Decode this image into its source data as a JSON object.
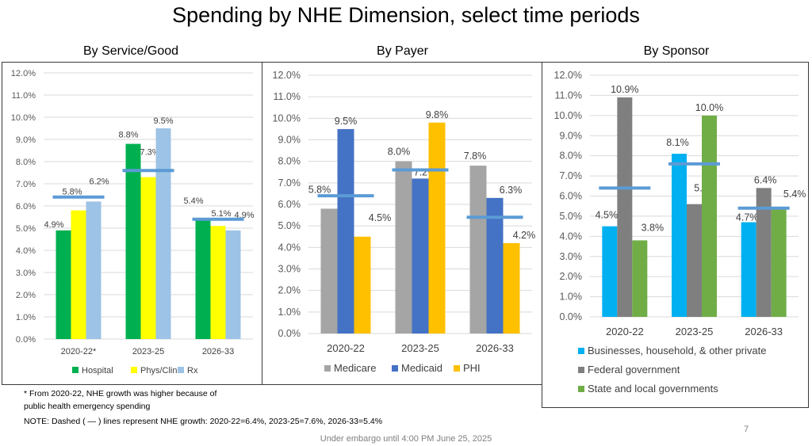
{
  "slide": {
    "title": "Spending by NHE Dimension, select time periods",
    "footnote_1": "* From 2020-22, NHE growth was higher because of",
    "footnote_2": "public health emergency spending",
    "note": "NOTE: Dashed ( — ) lines represent NHE growth: 2020-22=6.4%, 2023-25=7.6%, 2026-33=5.4%",
    "embargo": "Under embargo until 4:00 PM June 25, 2025",
    "page_number": "7"
  },
  "chart_data": [
    {
      "type": "bar",
      "title": "By Service/Good",
      "categories": [
        "2020-22*",
        "2023-25",
        "2026-33"
      ],
      "series": [
        {
          "name": "Hospital",
          "color": "#00B050",
          "values": [
            4.9,
            8.8,
            5.4
          ],
          "labels": [
            "4.9%",
            "8.8%",
            "5.4%"
          ]
        },
        {
          "name": "Phys/Clin",
          "color": "#FFFF00",
          "values": [
            5.8,
            7.3,
            5.1
          ],
          "labels": [
            "5.8%",
            "7.3%",
            "5.1%"
          ]
        },
        {
          "name": "Rx",
          "color": "#9DC3E6",
          "values": [
            6.2,
            9.5,
            4.9
          ],
          "labels": [
            "6.2%",
            "9.5%",
            "4.9%"
          ]
        }
      ],
      "nhe_growth": [
        6.4,
        7.6,
        5.4
      ],
      "nhe_line_color": "#5B9BD5",
      "ylim": [
        0,
        12
      ],
      "yticks": [
        "0.0%",
        "1.0%",
        "2.0%",
        "3.0%",
        "4.0%",
        "5.0%",
        "6.0%",
        "7.0%",
        "8.0%",
        "9.0%",
        "10.0%",
        "11.0%",
        "12.0%"
      ],
      "grid": true,
      "legend": "bottom",
      "xlabel": "",
      "ylabel": ""
    },
    {
      "type": "bar",
      "title": "By Payer",
      "categories": [
        "2020-22",
        "2023-25",
        "2026-33"
      ],
      "series": [
        {
          "name": "Medicare",
          "color": "#A5A5A5",
          "values": [
            5.8,
            8.0,
            7.8
          ],
          "labels": [
            "5.8%",
            "8.0%",
            "7.8%"
          ]
        },
        {
          "name": "Medicaid",
          "color": "#4472C4",
          "values": [
            9.5,
            7.2,
            6.3
          ],
          "labels": [
            "9.5%",
            "7.2%",
            "6.3%"
          ]
        },
        {
          "name": "PHI",
          "color": "#FFC000",
          "values": [
            4.5,
            9.8,
            4.2
          ],
          "labels": [
            "4.5%",
            "9.8%",
            "4.2%"
          ]
        }
      ],
      "nhe_growth": [
        6.4,
        7.6,
        5.4
      ],
      "nhe_line_color": "#5B9BD5",
      "ylim": [
        0,
        12
      ],
      "yticks": [
        "0.0%",
        "1.0%",
        "2.0%",
        "3.0%",
        "4.0%",
        "5.0%",
        "6.0%",
        "7.0%",
        "8.0%",
        "9.0%",
        "10.0%",
        "11.0%",
        "12.0%"
      ],
      "grid": true,
      "legend": "bottom",
      "xlabel": "",
      "ylabel": ""
    },
    {
      "type": "bar",
      "title": "By Sponsor",
      "categories": [
        "2020-22",
        "2023-25",
        "2026-33"
      ],
      "series": [
        {
          "name": "Businesses, household, & other private",
          "color": "#00B0F0",
          "values": [
            4.5,
            8.1,
            4.7
          ],
          "labels": [
            "4.5%",
            "8.1%",
            "4.7%"
          ]
        },
        {
          "name": "Federal government",
          "color": "#7F7F7F",
          "values": [
            10.9,
            5.6,
            6.4
          ],
          "labels": [
            "10.9%",
            "5.6%",
            "6.4%"
          ]
        },
        {
          "name": "State and local governments",
          "color": "#70AD47",
          "values": [
            3.8,
            10.0,
            5.4
          ],
          "labels": [
            "3.8%",
            "10.0%",
            "5.4%"
          ]
        }
      ],
      "nhe_growth": [
        6.4,
        7.6,
        5.4
      ],
      "nhe_line_color": "#5B9BD5",
      "ylim": [
        0,
        12
      ],
      "yticks": [
        "0.0%",
        "1.0%",
        "2.0%",
        "3.0%",
        "4.0%",
        "5.0%",
        "6.0%",
        "7.0%",
        "8.0%",
        "9.0%",
        "10.0%",
        "11.0%",
        "12.0%"
      ],
      "grid": true,
      "legend": "bottom-stacked",
      "xlabel": "",
      "ylabel": ""
    }
  ]
}
